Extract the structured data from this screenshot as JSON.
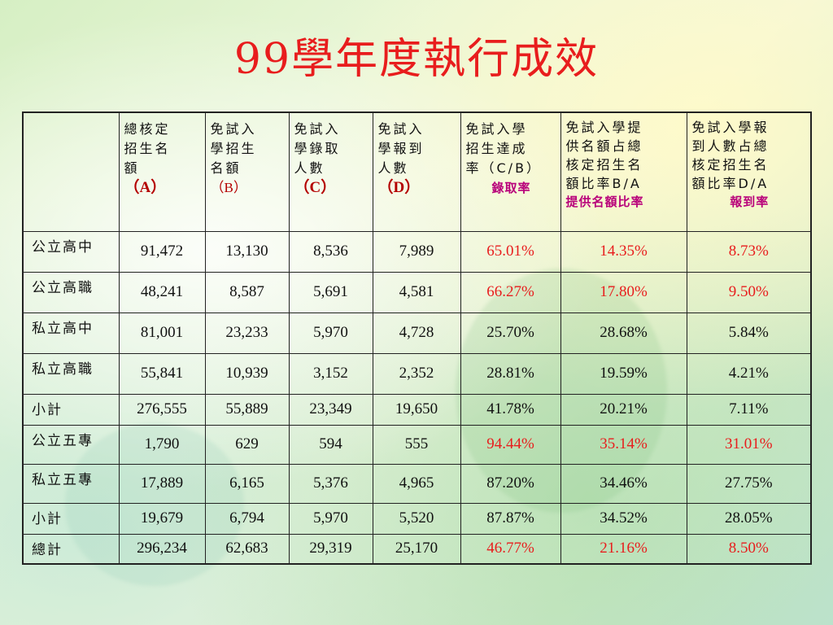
{
  "title": "99學年度執行成效",
  "table": {
    "headers": {
      "h1_line1": "總核定",
      "h1_line2": "招生名",
      "h1_line3": "額",
      "h1_code": "（A）",
      "h2_line1": "免試入",
      "h2_line2": "學招生",
      "h2_line3": "名額",
      "h2_code": "（B）",
      "h3_line1": "免試入",
      "h3_line2": "學錄取",
      "h3_line3": "人數",
      "h3_code": "（C）",
      "h4_line1": "免試入",
      "h4_line2": "學報到",
      "h4_line3": "人數",
      "h4_code": "（D）",
      "h5_line1": "免試入學",
      "h5_line2": "招生達成",
      "h5_line3": "率（C/B）",
      "h5_sub": "錄取率",
      "h6_line1": "免試入學提",
      "h6_line2": "供名額占總",
      "h6_line3": "核定招生名",
      "h6_line4": "額比率B/A",
      "h6_sub": "提供名額比率",
      "h7_line1": "免試入學報",
      "h7_line2": "到人數占總",
      "h7_line3": "核定招生名",
      "h7_line4": "額比率D/A",
      "h7_sub": "報到率"
    },
    "rows": [
      {
        "label": "公立高中",
        "a": "91,472",
        "b": "13,130",
        "c": "8,536",
        "d": "7,989",
        "e": "65.01%",
        "f": "14.35%",
        "g": "8.73%"
      },
      {
        "label": "公立高職",
        "a": "48,241",
        "b": "8,587",
        "c": "5,691",
        "d": "4,581",
        "e": "66.27%",
        "f": "17.80%",
        "g": "9.50%"
      },
      {
        "label": "私立高中",
        "a": "81,001",
        "b": "23,233",
        "c": "5,970",
        "d": "4,728",
        "e": "25.70%",
        "f": "28.68%",
        "g": "5.84%"
      },
      {
        "label": "私立高職",
        "a": "55,841",
        "b": "10,939",
        "c": "3,152",
        "d": "2,352",
        "e": "28.81%",
        "f": "19.59%",
        "g": "4.21%"
      },
      {
        "label": "小計",
        "a": "276,555",
        "b": "55,889",
        "c": "23,349",
        "d": "19,650",
        "e": "41.78%",
        "f": "20.21%",
        "g": "7.11%"
      },
      {
        "label": "公立五專",
        "a": "1,790",
        "b": "629",
        "c": "594",
        "d": "555",
        "e": "94.44%",
        "f": "35.14%",
        "g": "31.01%"
      },
      {
        "label": "私立五專",
        "a": "17,889",
        "b": "6,165",
        "c": "5,376",
        "d": "4,965",
        "e": "87.20%",
        "f": "34.46%",
        "g": "27.75%"
      },
      {
        "label": "小計",
        "a": "19,679",
        "b": "6,794",
        "c": "5,970",
        "d": "5,520",
        "e": "87.87%",
        "f": "34.52%",
        "g": "28.05%"
      },
      {
        "label": "總計",
        "a": "296,234",
        "b": "62,683",
        "c": "29,319",
        "d": "25,170",
        "e": "46.77%",
        "f": "21.16%",
        "g": "8.50%"
      }
    ]
  },
  "colors": {
    "title": "#e81d1d",
    "highlight_value": "#e81d1d",
    "header_code": "#b40000",
    "header_sub": "#b8007a"
  }
}
